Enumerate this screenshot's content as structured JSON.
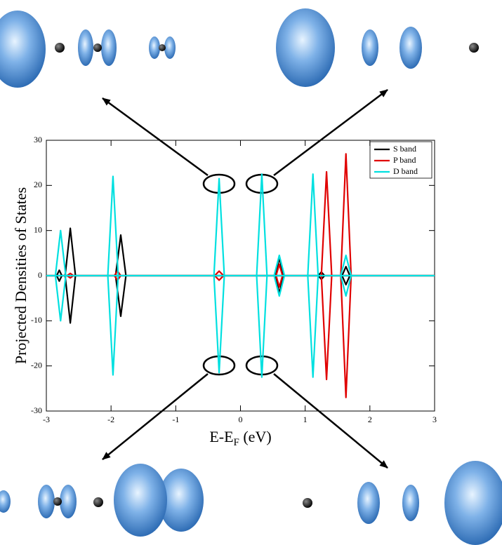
{
  "chart_data": {
    "type": "line",
    "y_label": "Projected Densities of States",
    "x_label": "E-E",
    "x_label_subscript": "F",
    "x_label_suffix": " (eV)",
    "xlim": [
      -3,
      3
    ],
    "xticks": [
      -3,
      -2,
      -1,
      0,
      1,
      2,
      3
    ],
    "ylim": [
      -30,
      30
    ],
    "yticks": [
      -30,
      -20,
      -10,
      0,
      10,
      20,
      30
    ],
    "legend": "top-right",
    "series": [
      {
        "name": "S band",
        "color": "#000000",
        "x": [
          -3,
          -2.84,
          -2.8,
          -2.76,
          -2.8,
          -2.84,
          -2.71,
          -2.63,
          -2.55,
          -2.63,
          -2.71,
          -1.93,
          -1.85,
          -1.77,
          -1.85,
          -1.93,
          0.54,
          0.6,
          0.66,
          0.6,
          0.54,
          1.2,
          1.25,
          1.3,
          1.25,
          1.2,
          1.57,
          1.63,
          1.69,
          1.63,
          1.57,
          3
        ],
        "values": [
          0,
          0,
          1.2,
          0,
          -1.2,
          0,
          0,
          10.5,
          0,
          -10.5,
          0,
          0,
          9,
          0,
          -9,
          0,
          0,
          4,
          0,
          -4,
          0,
          0,
          0.8,
          0,
          -0.8,
          0,
          0,
          2,
          0,
          -2,
          0,
          0
        ]
      },
      {
        "name": "P band",
        "color": "#e00000",
        "x": [
          -3,
          -2.68,
          -2.63,
          -2.58,
          -2.63,
          -2.68,
          -1.95,
          -1.9,
          -1.85,
          -1.9,
          -1.95,
          -0.4,
          -0.33,
          -0.26,
          -0.33,
          -0.4,
          0.55,
          0.6,
          0.65,
          0.6,
          0.55,
          1.25,
          1.33,
          1.41,
          1.33,
          1.25,
          1.55,
          1.63,
          1.71,
          1.63,
          1.55,
          3
        ],
        "values": [
          0,
          0,
          0.5,
          0,
          -0.5,
          0,
          0,
          1,
          0,
          -1,
          0,
          0,
          1,
          0,
          -1,
          0,
          0,
          2.5,
          0,
          -2.5,
          0,
          0,
          23,
          0,
          -23,
          0,
          0,
          27,
          0,
          -27,
          0,
          0
        ]
      },
      {
        "name": "D band",
        "color": "#00e0e0",
        "x": [
          -3,
          -2.86,
          -2.78,
          -2.7,
          -2.78,
          -2.86,
          -2.05,
          -1.97,
          -1.89,
          -1.97,
          -2.05,
          -0.41,
          -0.33,
          -0.25,
          -0.33,
          -0.41,
          0.25,
          0.33,
          0.41,
          0.33,
          0.25,
          0.52,
          0.6,
          0.68,
          0.6,
          0.52,
          1.04,
          1.12,
          1.2,
          1.12,
          1.04,
          1.55,
          1.63,
          1.71,
          1.63,
          1.55,
          3
        ],
        "values": [
          0,
          0,
          10,
          0,
          -10,
          0,
          0,
          22,
          0,
          -22,
          0,
          0,
          21.5,
          0,
          -21.5,
          0,
          0,
          22.5,
          0,
          -22.5,
          0,
          0,
          4.5,
          0,
          -4.5,
          0,
          0,
          22.5,
          0,
          -22.5,
          0,
          0,
          4.5,
          0,
          -4.5,
          0,
          0
        ]
      }
    ]
  }
}
